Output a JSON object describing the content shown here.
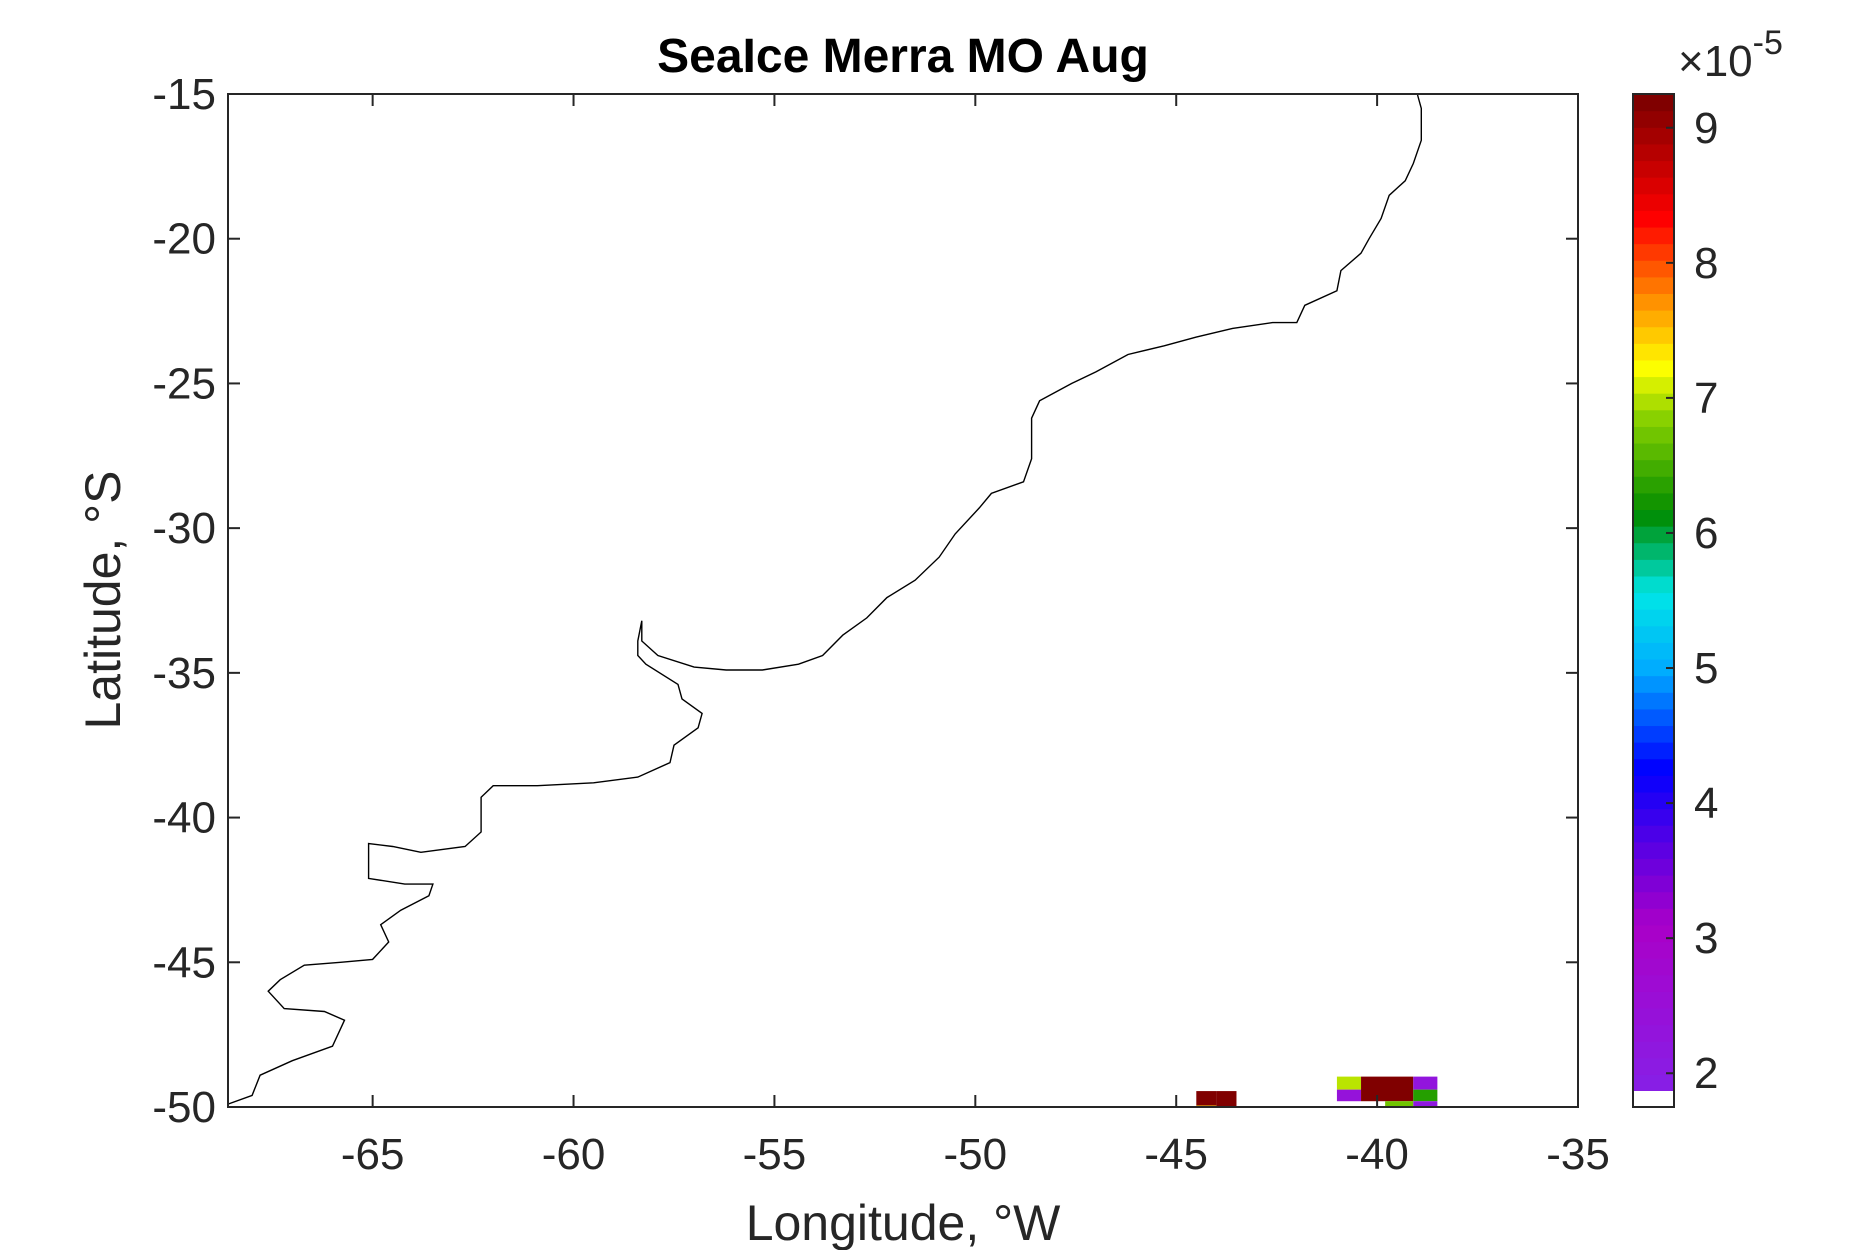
{
  "chart_data": {
    "type": "heatmap",
    "title": "SeaIce Merra MO Aug",
    "xlabel": "Longitude, °W",
    "ylabel": "Latitude, °S",
    "xlim": [
      -68.6,
      -35
    ],
    "ylim": [
      -50,
      -15
    ],
    "xticks": [
      -65,
      -60,
      -55,
      -50,
      -45,
      -40,
      -35
    ],
    "xtick_labels": [
      "-65",
      "-60",
      "-55",
      "-50",
      "-45",
      "-40",
      "-35"
    ],
    "yticks": [
      -15,
      -20,
      -25,
      -30,
      -35,
      -40,
      -45,
      -50
    ],
    "ytick_labels": [
      "-15",
      "-20",
      "-25",
      "-30",
      "-35",
      "-40",
      "-45",
      "-50"
    ],
    "grid": false,
    "colorbar": {
      "colormap": "rainbow (purple → blue → cyan → green → yellow → orange → red → dark red)",
      "range": [
        1.75e-05,
        9.25e-05
      ],
      "ticks": [
        2,
        3,
        4,
        5,
        6,
        7,
        8,
        9
      ],
      "tick_labels": [
        "2",
        "3",
        "4",
        "5",
        "6",
        "7",
        "8",
        "9"
      ],
      "exponent_multiplier": "×",
      "exponent_base": "10",
      "exponent_power": "-5",
      "background_color": "#ffffff"
    },
    "coastline": {
      "color": "#000000",
      "points": [
        [
          -68.6,
          -49.9
        ],
        [
          -68.0,
          -49.6
        ],
        [
          -67.8,
          -48.9
        ],
        [
          -67.0,
          -48.4
        ],
        [
          -66.0,
          -47.9
        ],
        [
          -65.7,
          -47.0
        ],
        [
          -66.2,
          -46.7
        ],
        [
          -67.2,
          -46.6
        ],
        [
          -67.6,
          -46.0
        ],
        [
          -67.3,
          -45.6
        ],
        [
          -66.7,
          -45.1
        ],
        [
          -65.8,
          -45.0
        ],
        [
          -65.0,
          -44.9
        ],
        [
          -64.6,
          -44.3
        ],
        [
          -64.8,
          -43.7
        ],
        [
          -64.3,
          -43.2
        ],
        [
          -63.6,
          -42.7
        ],
        [
          -63.5,
          -42.3
        ],
        [
          -64.2,
          -42.3
        ],
        [
          -65.1,
          -42.1
        ],
        [
          -65.1,
          -41.2
        ],
        [
          -65.1,
          -40.9
        ],
        [
          -64.5,
          -41.0
        ],
        [
          -63.8,
          -41.2
        ],
        [
          -62.7,
          -41.0
        ],
        [
          -62.3,
          -40.5
        ],
        [
          -62.3,
          -39.3
        ],
        [
          -62.0,
          -38.9
        ],
        [
          -60.9,
          -38.9
        ],
        [
          -59.5,
          -38.8
        ],
        [
          -58.4,
          -38.6
        ],
        [
          -57.6,
          -38.1
        ],
        [
          -57.5,
          -37.5
        ],
        [
          -56.9,
          -36.9
        ],
        [
          -56.8,
          -36.4
        ],
        [
          -57.3,
          -35.9
        ],
        [
          -57.4,
          -35.4
        ],
        [
          -58.2,
          -34.7
        ],
        [
          -58.4,
          -34.4
        ],
        [
          -58.4,
          -33.9
        ],
        [
          -58.3,
          -33.2
        ],
        [
          -58.3,
          -33.9
        ],
        [
          -57.9,
          -34.4
        ],
        [
          -57.0,
          -34.8
        ],
        [
          -56.2,
          -34.9
        ],
        [
          -55.3,
          -34.9
        ],
        [
          -54.4,
          -34.7
        ],
        [
          -53.8,
          -34.4
        ],
        [
          -53.3,
          -33.7
        ],
        [
          -52.7,
          -33.1
        ],
        [
          -52.2,
          -32.4
        ],
        [
          -51.5,
          -31.8
        ],
        [
          -50.9,
          -31.0
        ],
        [
          -50.5,
          -30.2
        ],
        [
          -49.9,
          -29.3
        ],
        [
          -49.6,
          -28.8
        ],
        [
          -48.8,
          -28.4
        ],
        [
          -48.6,
          -27.6
        ],
        [
          -48.6,
          -26.9
        ],
        [
          -48.6,
          -26.2
        ],
        [
          -48.4,
          -25.6
        ],
        [
          -47.6,
          -25.0
        ],
        [
          -47.0,
          -24.6
        ],
        [
          -46.2,
          -24.0
        ],
        [
          -45.3,
          -23.7
        ],
        [
          -44.5,
          -23.4
        ],
        [
          -43.6,
          -23.1
        ],
        [
          -42.6,
          -22.9
        ],
        [
          -42.0,
          -22.9
        ],
        [
          -41.8,
          -22.3
        ],
        [
          -41.0,
          -21.8
        ],
        [
          -40.9,
          -21.1
        ],
        [
          -40.4,
          -20.5
        ],
        [
          -40.2,
          -20.0
        ],
        [
          -39.9,
          -19.3
        ],
        [
          -39.7,
          -18.5
        ],
        [
          -39.3,
          -18.0
        ],
        [
          -39.1,
          -17.4
        ],
        [
          -38.9,
          -16.6
        ],
        [
          -38.9,
          -15.5
        ],
        [
          -39.0,
          -15.0
        ]
      ]
    },
    "cells": [
      {
        "lon": [
          -44.5,
          -44.0
        ],
        "lat": [
          -49.95,
          -49.45
        ],
        "value": 9.25e-05
      },
      {
        "lon": [
          -44.0,
          -43.5
        ],
        "lat": [
          -50.0,
          -49.45
        ],
        "value": 9.25e-05
      },
      {
        "lon": [
          -44.5,
          -44.0
        ],
        "lat": [
          -50.0,
          -49.95
        ],
        "value": 7.4e-05
      },
      {
        "lon": [
          -41.0,
          -40.4
        ],
        "lat": [
          -49.4,
          -48.95
        ],
        "value": 7e-05
      },
      {
        "lon": [
          -41.0,
          -40.4
        ],
        "lat": [
          -49.8,
          -49.4
        ],
        "value": 2.2e-05
      },
      {
        "lon": [
          -40.4,
          -39.1
        ],
        "lat": [
          -49.8,
          -48.95
        ],
        "value": 9.25e-05
      },
      {
        "lon": [
          -39.8,
          -39.1
        ],
        "lat": [
          -50.0,
          -49.8
        ],
        "value": 6.7e-05
      },
      {
        "lon": [
          -39.1,
          -38.5
        ],
        "lat": [
          -49.4,
          -48.95
        ],
        "value": 2.1e-05
      },
      {
        "lon": [
          -39.1,
          -38.5
        ],
        "lat": [
          -49.8,
          -49.4
        ],
        "value": 6.3e-05
      },
      {
        "lon": [
          -39.1,
          -38.5
        ],
        "lat": [
          -50.0,
          -49.8
        ],
        "value": 2e-05
      }
    ]
  }
}
